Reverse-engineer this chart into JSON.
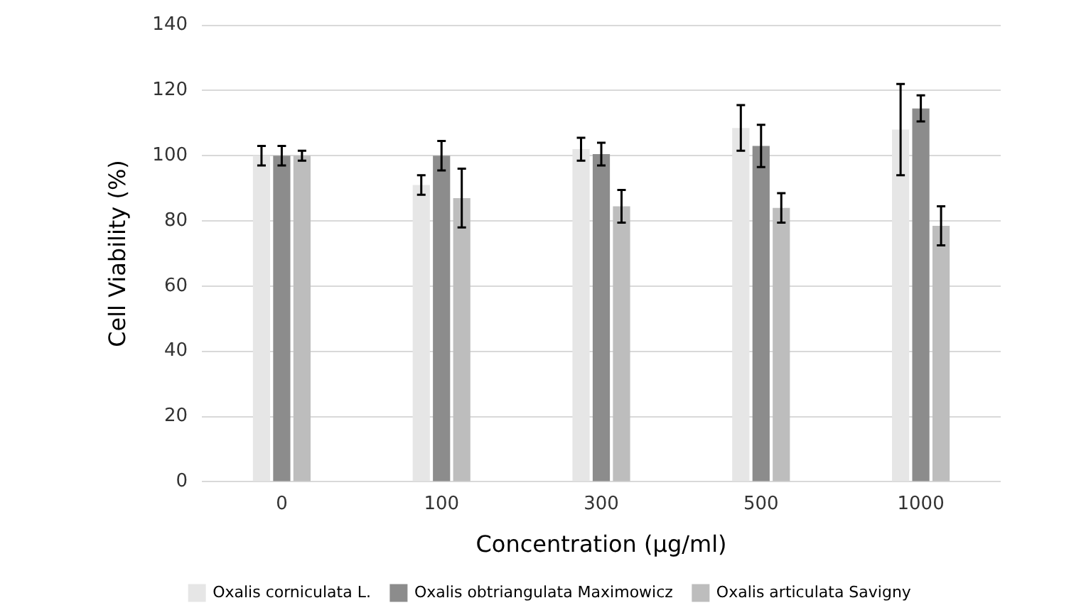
{
  "chart_data": {
    "type": "bar",
    "xlabel": "Concentration (μg/ml)",
    "ylabel": "Cell Viability (%)",
    "categories": [
      "0",
      "100",
      "300",
      "500",
      "1000"
    ],
    "series": [
      {
        "name": "Oxalis corniculata L.",
        "color": "#e6e6e6",
        "values": [
          100,
          91,
          102,
          108.5,
          108
        ],
        "errors": [
          3,
          3,
          3.5,
          7,
          14
        ]
      },
      {
        "name": "Oxalis obtriangulata Maximowicz",
        "color": "#8c8c8c",
        "values": [
          100,
          100,
          100.5,
          103,
          114.5
        ],
        "errors": [
          3,
          4.5,
          3.5,
          6.5,
          4
        ]
      },
      {
        "name": "Oxalis articulata Savigny",
        "color": "#bdbdbd",
        "values": [
          100,
          87,
          84.5,
          84,
          78.5
        ],
        "errors": [
          1.5,
          9,
          5,
          4.5,
          6
        ]
      }
    ],
    "ylim": [
      0,
      140
    ],
    "yticks": [
      0,
      20,
      40,
      60,
      80,
      100,
      120,
      140
    ],
    "grid": "y",
    "legend": "bottom"
  }
}
